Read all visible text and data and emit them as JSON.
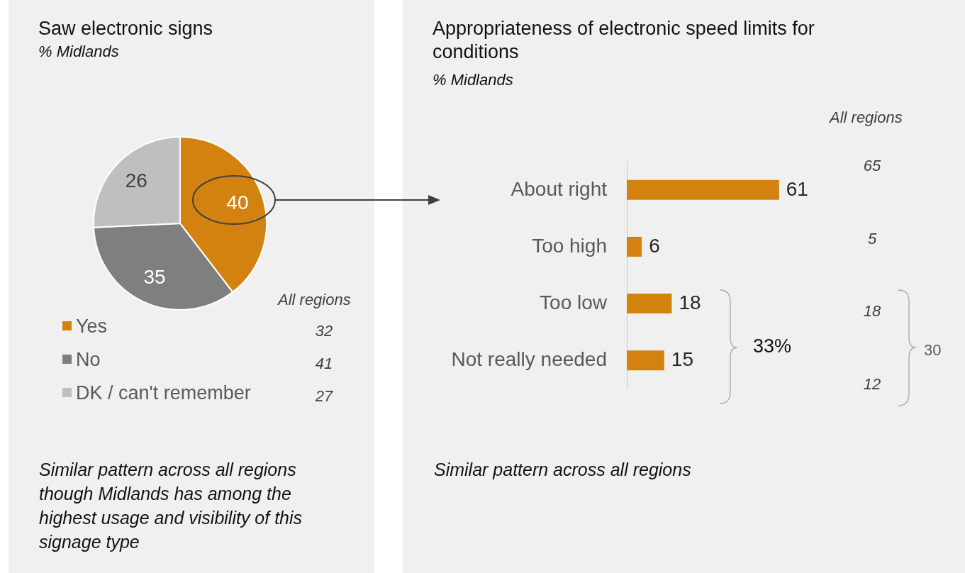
{
  "chart_data": [
    {
      "type": "pie",
      "title": "Saw electronic signs",
      "subtitle": "% Midlands",
      "categories": [
        "Yes",
        "No",
        "DK / can't remember"
      ],
      "values": [
        40,
        35,
        26
      ],
      "colors": [
        "#d4820f",
        "#7f7f7f",
        "#bfbfbf"
      ],
      "data_labels": true,
      "legend": "bottom",
      "annotations": [
        "All regions",
        "32",
        "41",
        "27",
        "Similar pattern across all regions though Midlands has among the highest usage and visibility of this signage type"
      ]
    },
    {
      "type": "bar",
      "orientation": "horizontal",
      "title": "Appropriateness of electronic speed limits for conditions",
      "subtitle": "% Midlands",
      "categories": [
        "About right",
        "Too high",
        "Too low",
        "Not really needed"
      ],
      "values": [
        61,
        6,
        18,
        15
      ],
      "color": "#d4820f",
      "data_labels": true,
      "tick_labels": "y",
      "annotations": [
        "All regions",
        "65",
        "5",
        "18",
        "12",
        "33%",
        "30",
        "Similar pattern across all regions"
      ]
    }
  ]
}
